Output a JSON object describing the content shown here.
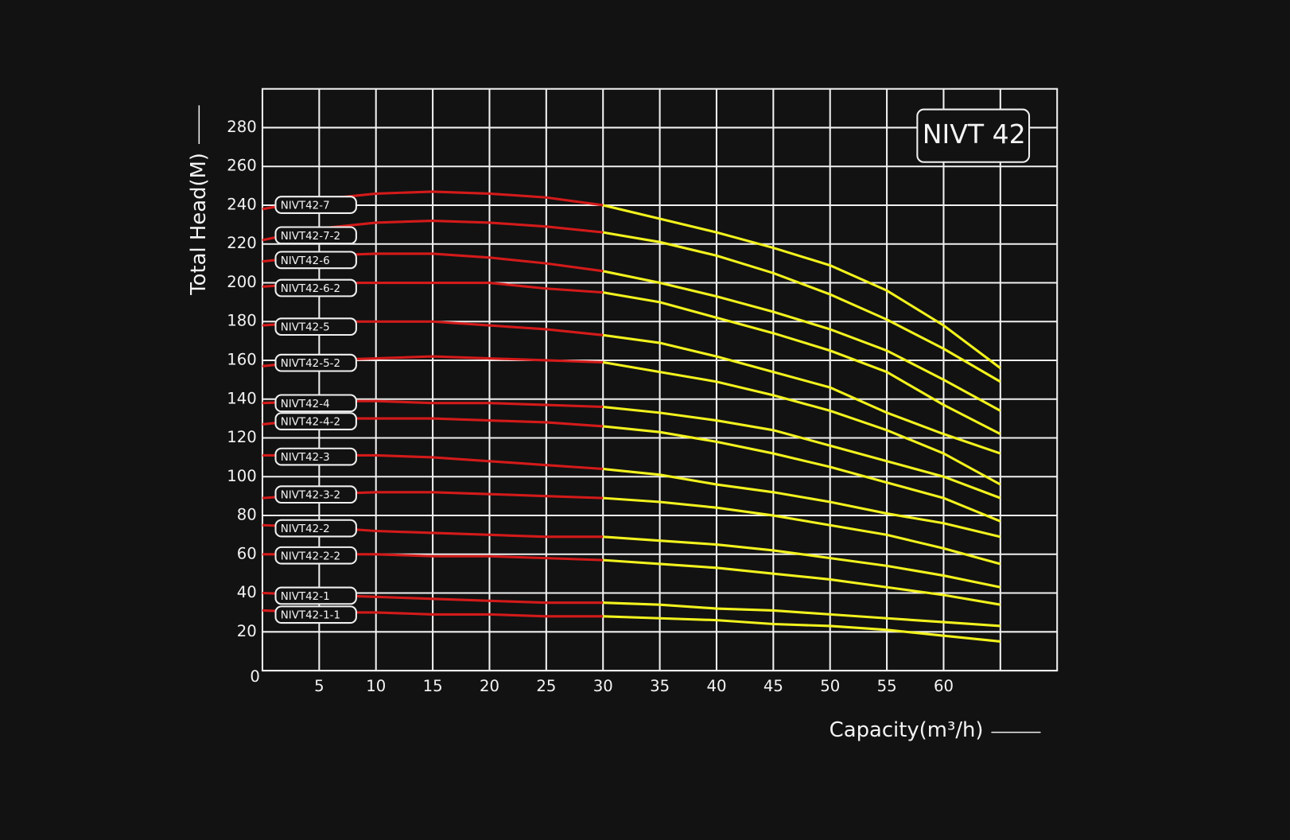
{
  "chart_data": {
    "type": "line",
    "title": "NIVT 42",
    "x_label": "Capacity(m³/h)",
    "y_label": "Total Head(M)",
    "x": [
      0,
      5,
      10,
      15,
      20,
      25,
      30,
      35,
      40,
      45,
      50,
      55,
      60,
      65
    ],
    "xlim": [
      0,
      70
    ],
    "ylim": [
      0,
      300
    ],
    "xticks": [
      5,
      10,
      15,
      20,
      25,
      30,
      35,
      40,
      45,
      50,
      55,
      60
    ],
    "xgrid": [
      5,
      10,
      15,
      20,
      25,
      30,
      35,
      40,
      45,
      50,
      55,
      60,
      65
    ],
    "yticks": [
      0,
      20,
      40,
      60,
      80,
      100,
      120,
      140,
      160,
      180,
      200,
      220,
      240,
      260,
      280
    ],
    "grid": true,
    "colors": [
      "#d41a1a",
      "#f2f21e"
    ],
    "color_change_at": 30,
    "series": [
      {
        "name": "NIVT42-7",
        "values": [
          238,
          243,
          246,
          247,
          246,
          244,
          240,
          233,
          226,
          218,
          209,
          196,
          178,
          156
        ]
      },
      {
        "name": "NIVT42-7-2",
        "values": [
          222,
          228,
          231,
          232,
          231,
          229,
          226,
          221,
          214,
          205,
          194,
          181,
          166,
          149
        ]
      },
      {
        "name": "NIVT42-6",
        "values": [
          211,
          214,
          215,
          215,
          213,
          210,
          206,
          200,
          193,
          185,
          176,
          165,
          150,
          134
        ]
      },
      {
        "name": "NIVT42-6-2",
        "values": [
          198,
          200,
          200,
          200,
          200,
          197,
          195,
          190,
          182,
          174,
          165,
          154,
          137,
          122
        ]
      },
      {
        "name": "NIVT42-5",
        "values": [
          178,
          180,
          180,
          180,
          178,
          176,
          173,
          169,
          162,
          154,
          146,
          133,
          122,
          112
        ]
      },
      {
        "name": "NIVT42-5-2",
        "values": [
          157,
          160,
          161,
          162,
          161,
          160,
          159,
          154,
          149,
          142,
          134,
          124,
          112,
          96
        ]
      },
      {
        "name": "NIVT42-4",
        "values": [
          138,
          139,
          139,
          138,
          138,
          137,
          136,
          133,
          129,
          124,
          116,
          108,
          100,
          89
        ]
      },
      {
        "name": "NIVT42-4-2",
        "values": [
          127,
          130,
          130,
          130,
          129,
          128,
          126,
          123,
          118,
          112,
          105,
          97,
          89,
          77
        ]
      },
      {
        "name": "NIVT42-3",
        "values": [
          111,
          111,
          111,
          110,
          108,
          106,
          104,
          101,
          96,
          92,
          87,
          81,
          76,
          69
        ]
      },
      {
        "name": "NIVT42-3-2",
        "values": [
          89,
          91,
          92,
          92,
          91,
          90,
          89,
          87,
          84,
          80,
          75,
          70,
          63,
          55
        ]
      },
      {
        "name": "NIVT42-2",
        "values": [
          75,
          74,
          72,
          71,
          70,
          69,
          69,
          67,
          65,
          62,
          58,
          54,
          49,
          43
        ]
      },
      {
        "name": "NIVT42-2-2",
        "values": [
          60,
          60,
          60,
          59,
          59,
          58,
          57,
          55,
          53,
          50,
          47,
          43,
          39,
          34
        ]
      },
      {
        "name": "NIVT42-1",
        "values": [
          40,
          39,
          38,
          37,
          36,
          35,
          35,
          34,
          32,
          31,
          29,
          27,
          25,
          23
        ]
      },
      {
        "name": "NIVT42-1-1",
        "values": [
          31,
          30,
          30,
          29,
          29,
          28,
          28,
          27,
          26,
          24,
          23,
          21,
          18,
          15
        ]
      }
    ]
  }
}
